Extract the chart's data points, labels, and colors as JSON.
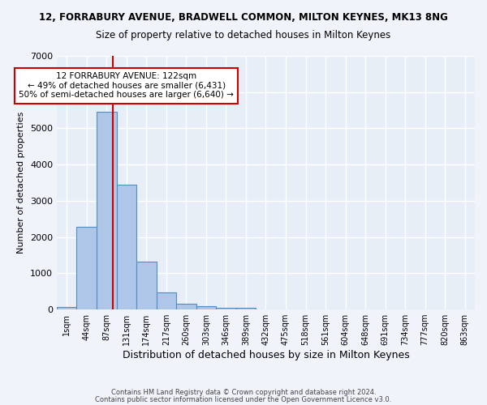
{
  "title_line1": "12, FORRABURY AVENUE, BRADWELL COMMON, MILTON KEYNES, MK13 8NG",
  "title_line2": "Size of property relative to detached houses in Milton Keynes",
  "xlabel": "Distribution of detached houses by size in Milton Keynes",
  "ylabel": "Number of detached properties",
  "bin_labels": [
    "1sqm",
    "44sqm",
    "87sqm",
    "131sqm",
    "174sqm",
    "217sqm",
    "260sqm",
    "303sqm",
    "346sqm",
    "389sqm",
    "432sqm",
    "475sqm",
    "518sqm",
    "561sqm",
    "604sqm",
    "648sqm",
    "691sqm",
    "734sqm",
    "777sqm",
    "820sqm",
    "863sqm"
  ],
  "bar_heights": [
    80,
    2280,
    5460,
    3440,
    1310,
    470,
    155,
    90,
    55,
    50,
    0,
    0,
    0,
    0,
    0,
    0,
    0,
    0,
    0,
    0,
    0
  ],
  "bar_color": "#aec6e8",
  "bar_edge_color": "#4f8fc0",
  "vline_color": "#cc0000",
  "annotation_text": "12 FORRABURY AVENUE: 122sqm\n← 49% of detached houses are smaller (6,431)\n50% of semi-detached houses are larger (6,640) →",
  "annotation_box_color": "#ffffff",
  "annotation_box_edge": "#cc0000",
  "ylim": [
    0,
    7000
  ],
  "yticks": [
    0,
    1000,
    2000,
    3000,
    4000,
    5000,
    6000,
    7000
  ],
  "bg_color": "#e8eef8",
  "grid_color": "#ffffff",
  "footer_line1": "Contains HM Land Registry data © Crown copyright and database right 2024.",
  "footer_line2": "Contains public sector information licensed under the Open Government Licence v3.0."
}
